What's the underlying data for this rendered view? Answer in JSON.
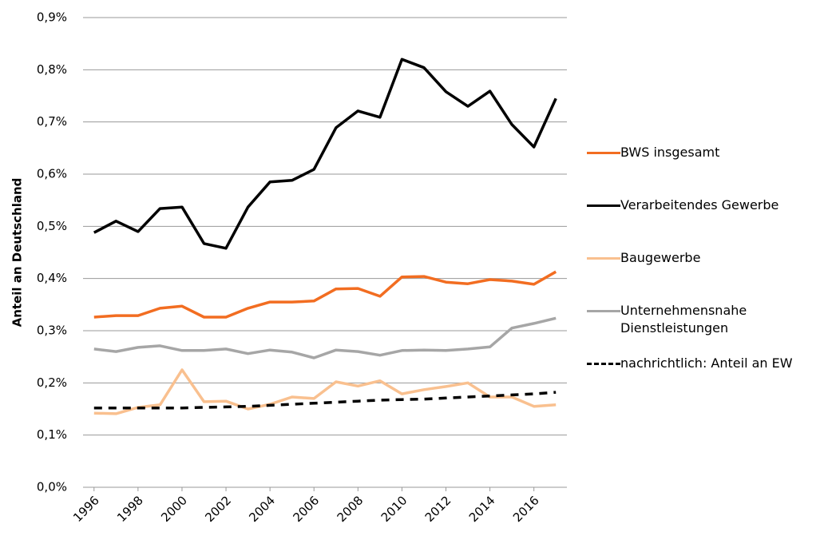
{
  "chart_data": {
    "type": "line",
    "y_axis_label": "Anteil an Deutschland",
    "x": [
      1996,
      1997,
      1998,
      1999,
      2000,
      2001,
      2002,
      2003,
      2004,
      2005,
      2006,
      2007,
      2008,
      2009,
      2010,
      2011,
      2012,
      2013,
      2014,
      2015,
      2016,
      2017
    ],
    "xlim": [
      1995.5,
      2017.5
    ],
    "xticks": [
      1996,
      1998,
      2000,
      2002,
      2004,
      2006,
      2008,
      2010,
      2012,
      2014,
      2016
    ],
    "ylim": [
      0,
      0.9
    ],
    "yticks": [
      {
        "value": 0,
        "label": "0,0%"
      },
      {
        "value": 0.1,
        "label": "0,1%"
      },
      {
        "value": 0.2,
        "label": "0,2%"
      },
      {
        "value": 0.3,
        "label": "0,3%"
      },
      {
        "value": 0.4,
        "label": "0,4%"
      },
      {
        "value": 0.5,
        "label": "0,5%"
      },
      {
        "value": 0.6,
        "label": "0,6%"
      },
      {
        "value": 0.7,
        "label": "0,7%"
      },
      {
        "value": 0.8,
        "label": "0,8%"
      },
      {
        "value": 0.9,
        "label": "0,9%"
      }
    ],
    "grid": true,
    "legend": "right",
    "series": [
      {
        "name": "BWS insgesamt",
        "color": "#f26d21",
        "dash": false,
        "values": [
          0.326,
          0.329,
          0.329,
          0.343,
          0.347,
          0.326,
          0.326,
          0.343,
          0.355,
          0.355,
          0.357,
          0.38,
          0.381,
          0.366,
          0.403,
          0.404,
          0.393,
          0.39,
          0.398,
          0.395,
          0.389,
          0.413
        ]
      },
      {
        "name": "Verarbeitendes Gewerbe",
        "color": "#000000",
        "dash": false,
        "values": [
          0.488,
          0.51,
          0.49,
          0.534,
          0.537,
          0.467,
          0.458,
          0.537,
          0.585,
          0.588,
          0.609,
          0.689,
          0.721,
          0.709,
          0.82,
          0.804,
          0.758,
          0.73,
          0.759,
          0.695,
          0.652,
          0.745
        ]
      },
      {
        "name": "Baugewerbe",
        "color": "#f9c08f",
        "dash": false,
        "values": [
          0.142,
          0.141,
          0.153,
          0.158,
          0.225,
          0.164,
          0.165,
          0.15,
          0.159,
          0.173,
          0.17,
          0.202,
          0.194,
          0.204,
          0.179,
          0.187,
          0.193,
          0.2,
          0.173,
          0.173,
          0.155,
          0.158
        ]
      },
      {
        "name": "Unternehmensnahe Dienstleistungen",
        "color": "#a6a6a6",
        "dash": false,
        "values": [
          0.265,
          0.26,
          0.268,
          0.271,
          0.262,
          0.262,
          0.265,
          0.256,
          0.263,
          0.259,
          0.248,
          0.263,
          0.26,
          0.253,
          0.262,
          0.263,
          0.262,
          0.265,
          0.269,
          0.305,
          0.314,
          0.324
        ]
      },
      {
        "name": "nachrichtlich: Anteil an EW",
        "color": "#000000",
        "dash": true,
        "values": [
          0.152,
          0.152,
          0.152,
          0.152,
          0.152,
          0.153,
          0.154,
          0.155,
          0.157,
          0.159,
          0.161,
          0.163,
          0.165,
          0.167,
          0.168,
          0.169,
          0.171,
          0.173,
          0.175,
          0.177,
          0.179,
          0.182
        ]
      }
    ]
  }
}
